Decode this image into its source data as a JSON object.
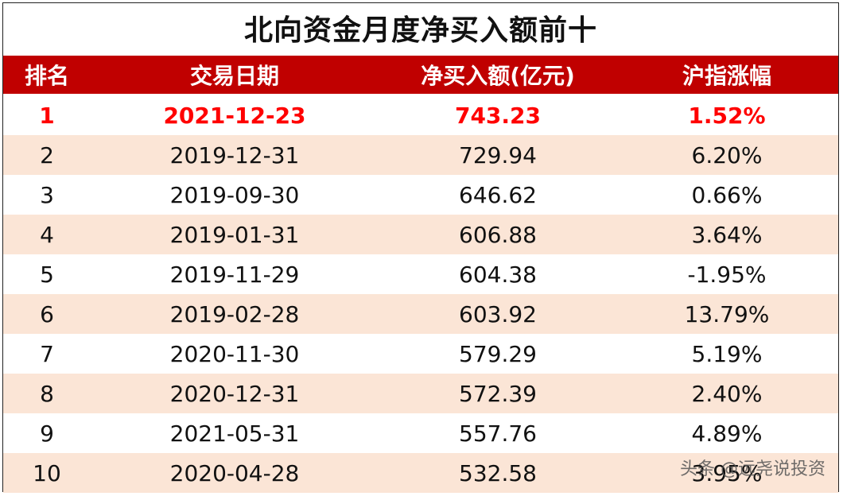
{
  "title": "北向资金月度净买入额前十",
  "headers": [
    "排名",
    "交易日期",
    "净买入额(亿元)",
    "沪指涨幅"
  ],
  "rows": [
    {
      "rank": "1",
      "date": "2021-12-23",
      "amount": "743.23",
      "change": "1.52%"
    },
    {
      "rank": "2",
      "date": "2019-12-31",
      "amount": "729.94",
      "change": "6.20%"
    },
    {
      "rank": "3",
      "date": "2019-09-30",
      "amount": "646.62",
      "change": "0.66%"
    },
    {
      "rank": "4",
      "date": "2019-01-31",
      "amount": "606.88",
      "change": "3.64%"
    },
    {
      "rank": "5",
      "date": "2019-11-29",
      "amount": "604.38",
      "change": "-1.95%"
    },
    {
      "rank": "6",
      "date": "2019-02-28",
      "amount": "603.92",
      "change": "13.79%"
    },
    {
      "rank": "7",
      "date": "2020-11-30",
      "amount": "579.29",
      "change": "5.19%"
    },
    {
      "rank": "8",
      "date": "2020-12-31",
      "amount": "572.39",
      "change": "2.40%"
    },
    {
      "rank": "9",
      "date": "2021-05-31",
      "amount": "557.76",
      "change": "4.89%"
    },
    {
      "rank": "10",
      "date": "2020-04-28",
      "amount": "532.58",
      "change": "3.95%"
    }
  ],
  "watermark": "头条 @远尧说投资",
  "colors": {
    "header_bg": "#c00000",
    "highlight_text": "#ff0000",
    "stripe": "#fbe5d6"
  }
}
